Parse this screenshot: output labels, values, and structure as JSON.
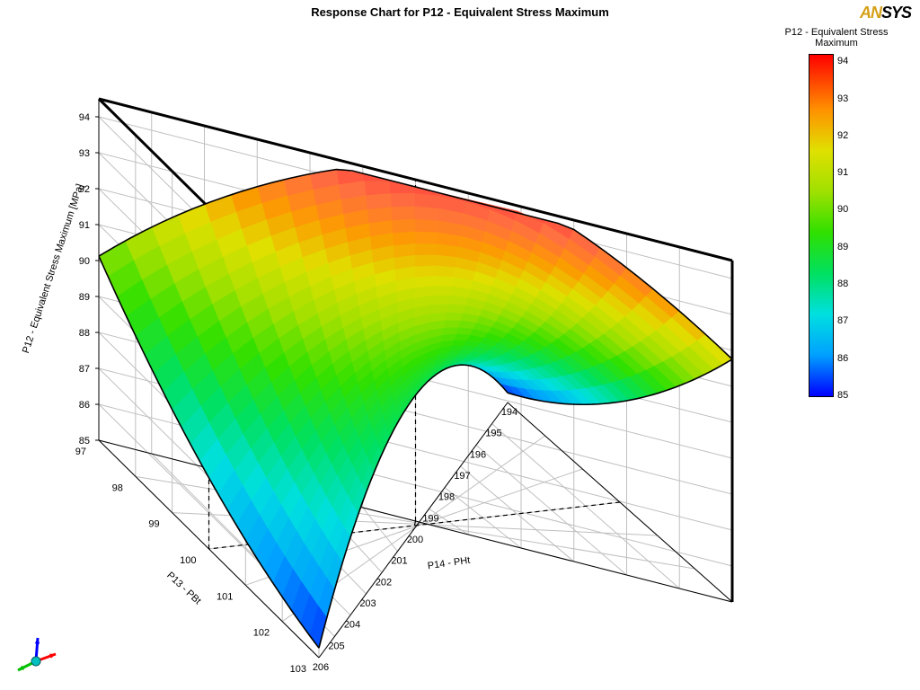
{
  "title": "Response Chart for P12 - Equivalent Stress Maximum",
  "logo": {
    "part1": "AN",
    "part2": "SYS"
  },
  "legend_title": "P12 - Equivalent Stress Maximum",
  "z_axis_label": "P12 - Equivalent Stress Maximum   [MPa]",
  "x_axis_label": "P13 - PBt",
  "y_axis_label": "P14 - PHt",
  "z_ticks": [
    85,
    86,
    87,
    88,
    89,
    90,
    91,
    92,
    93,
    94
  ],
  "x_ticks": [
    97,
    98,
    99,
    100,
    101,
    102,
    103
  ],
  "y_ticks": [
    194,
    195,
    196,
    197,
    198,
    199,
    200,
    201,
    202,
    203,
    204,
    205,
    206
  ],
  "legend_ticks": [
    85,
    86,
    87,
    88,
    89,
    90,
    91,
    92,
    93,
    94
  ],
  "legend_min": 85,
  "legend_max": 94.2,
  "colormap_stops": [
    {
      "p": 0,
      "c": "#0000ff"
    },
    {
      "p": 0.12,
      "c": "#00a0ff"
    },
    {
      "p": 0.24,
      "c": "#00e0e0"
    },
    {
      "p": 0.36,
      "c": "#00e060"
    },
    {
      "p": 0.48,
      "c": "#30e000"
    },
    {
      "p": 0.6,
      "c": "#a0e000"
    },
    {
      "p": 0.72,
      "c": "#e0e000"
    },
    {
      "p": 0.84,
      "c": "#ff9000"
    },
    {
      "p": 1.0,
      "c": "#ff0000"
    }
  ],
  "x_range": [
    97,
    103
  ],
  "y_range": [
    194,
    206
  ],
  "z_range": [
    85,
    94.5
  ],
  "surface_nx": 24,
  "surface_ny": 24,
  "triad_colors": {
    "x": "#ff0000",
    "y": "#00c000",
    "z": "#0000ff",
    "origin": "#00c0c0"
  },
  "axis_color": "#000000",
  "grid_color": "#bfbfbf",
  "wall_color": "#ffffff",
  "box_emphasis_color": "#000000",
  "floor_crosshair_color": "#000000"
}
